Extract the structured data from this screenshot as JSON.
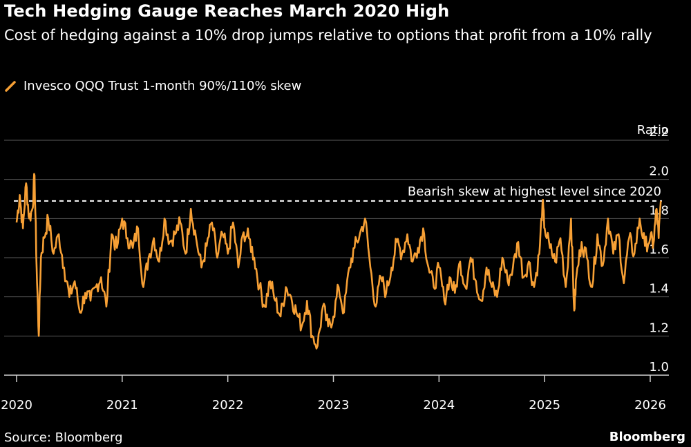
{
  "title": "Tech Hedging Gauge Reaches March 2020 High",
  "subtitle": "Cost of hedging against a 10% drop jumps relative to options that profit from a 10% rally",
  "legend": {
    "label": "Invesco QQQ Trust 1-month 90%/110% skew",
    "color": "#f7a035"
  },
  "footer": {
    "source": "Source: Bloomberg",
    "brand": "Bloomberg"
  },
  "colors": {
    "background": "#000000",
    "grid": "#5a5a5a",
    "text": "#ffffff",
    "line": "#f7a035"
  },
  "chart_data": {
    "type": "line",
    "title": "Tech Hedging Gauge Reaches March 2020 High",
    "ylabel": "Ratio",
    "xlabel": "",
    "ylim": [
      1.0,
      2.2
    ],
    "yticks": [
      "2.2",
      "2.0",
      "1.8",
      "1.6",
      "1.4",
      "1.2",
      "1.0"
    ],
    "xticks": [
      "2020",
      "2021",
      "2022",
      "2023",
      "2024",
      "2025",
      "2026"
    ],
    "xrange": [
      2020.0,
      2026.1
    ],
    "reference_line": {
      "value": 1.89,
      "label": "Bearish skew at highest level since 2020",
      "style": "dashed"
    },
    "series": [
      {
        "name": "Invesco QQQ Trust 1-month 90%/110% skew",
        "x": [
          2020.0,
          2020.03,
          2020.06,
          2020.09,
          2020.12,
          2020.15,
          2020.17,
          2020.19,
          2020.21,
          2020.23,
          2020.26,
          2020.3,
          2020.35,
          2020.4,
          2020.45,
          2020.5,
          2020.55,
          2020.6,
          2020.65,
          2020.7,
          2020.75,
          2020.8,
          2020.85,
          2020.9,
          2020.95,
          2021.0,
          2021.05,
          2021.1,
          2021.15,
          2021.2,
          2021.25,
          2021.3,
          2021.35,
          2021.4,
          2021.45,
          2021.5,
          2021.55,
          2021.6,
          2021.65,
          2021.7,
          2021.75,
          2021.8,
          2021.85,
          2021.9,
          2021.95,
          2022.0,
          2022.05,
          2022.1,
          2022.15,
          2022.2,
          2022.25,
          2022.3,
          2022.35,
          2022.4,
          2022.45,
          2022.5,
          2022.55,
          2022.6,
          2022.65,
          2022.7,
          2022.75,
          2022.8,
          2022.85,
          2022.9,
          2022.95,
          2023.0,
          2023.05,
          2023.1,
          2023.15,
          2023.2,
          2023.25,
          2023.3,
          2023.35,
          2023.4,
          2023.45,
          2023.5,
          2023.55,
          2023.6,
          2023.65,
          2023.7,
          2023.75,
          2023.8,
          2023.85,
          2023.9,
          2023.95,
          2024.0,
          2024.05,
          2024.1,
          2024.15,
          2024.2,
          2024.25,
          2024.3,
          2024.35,
          2024.4,
          2024.45,
          2024.5,
          2024.55,
          2024.6,
          2024.65,
          2024.7,
          2024.75,
          2024.8,
          2024.85,
          2024.9,
          2024.95,
          2024.98,
          2025.0,
          2025.05,
          2025.1,
          2025.15,
          2025.2,
          2025.25,
          2025.28,
          2025.3,
          2025.35,
          2025.4,
          2025.45,
          2025.5,
          2025.55,
          2025.6,
          2025.65,
          2025.7,
          2025.75,
          2025.8,
          2025.85,
          2025.9,
          2025.95,
          2026.0,
          2026.03,
          2026.06,
          2026.08,
          2026.1
        ],
        "values": [
          1.78,
          1.92,
          1.75,
          1.98,
          1.8,
          1.85,
          2.02,
          1.55,
          1.2,
          1.6,
          1.7,
          1.8,
          1.62,
          1.72,
          1.55,
          1.4,
          1.48,
          1.32,
          1.42,
          1.38,
          1.45,
          1.5,
          1.35,
          1.72,
          1.65,
          1.8,
          1.7,
          1.65,
          1.75,
          1.45,
          1.6,
          1.7,
          1.58,
          1.8,
          1.68,
          1.72,
          1.78,
          1.62,
          1.85,
          1.7,
          1.55,
          1.66,
          1.78,
          1.6,
          1.72,
          1.62,
          1.78,
          1.55,
          1.73,
          1.7,
          1.6,
          1.45,
          1.35,
          1.48,
          1.38,
          1.3,
          1.45,
          1.4,
          1.32,
          1.25,
          1.38,
          1.2,
          1.15,
          1.35,
          1.25,
          1.3,
          1.45,
          1.32,
          1.55,
          1.65,
          1.72,
          1.8,
          1.55,
          1.35,
          1.5,
          1.42,
          1.55,
          1.68,
          1.62,
          1.72,
          1.58,
          1.65,
          1.75,
          1.55,
          1.45,
          1.55,
          1.38,
          1.5,
          1.42,
          1.58,
          1.45,
          1.6,
          1.48,
          1.38,
          1.55,
          1.45,
          1.4,
          1.6,
          1.48,
          1.55,
          1.68,
          1.5,
          1.58,
          1.45,
          1.62,
          1.88,
          1.75,
          1.65,
          1.58,
          1.7,
          1.45,
          1.8,
          1.33,
          1.5,
          1.68,
          1.6,
          1.45,
          1.72,
          1.56,
          1.8,
          1.62,
          1.72,
          1.47,
          1.7,
          1.62,
          1.8,
          1.66,
          1.7,
          1.67,
          1.85,
          1.7,
          1.89
        ]
      }
    ]
  }
}
